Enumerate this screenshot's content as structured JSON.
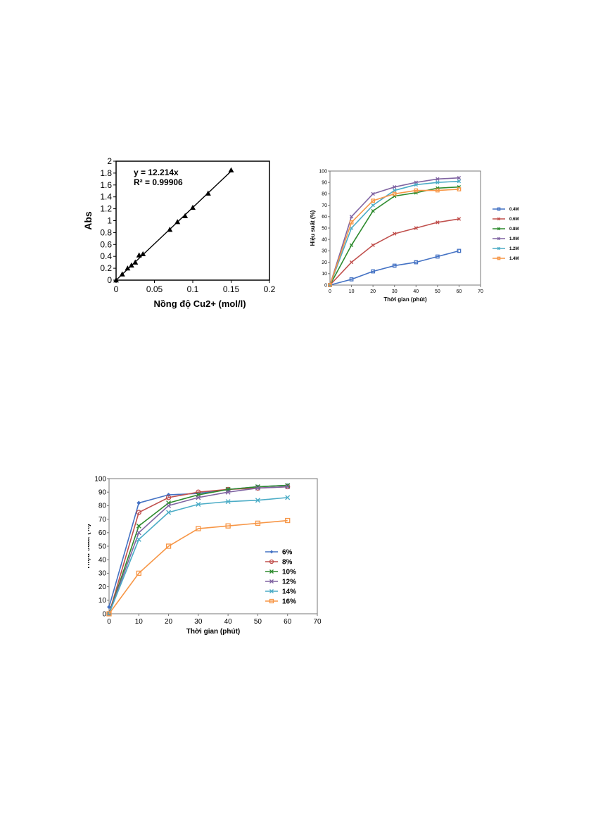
{
  "chart_data": [
    {
      "type": "scatter",
      "xlabel": "Nồng độ Cu2+  (mol/l)",
      "ylabel": "Abs",
      "xlim": [
        0,
        0.2
      ],
      "ylim": [
        0,
        2
      ],
      "x_ticks": [
        "0",
        "0.05",
        "0.1",
        "0.15",
        "0.2"
      ],
      "y_ticks": [
        "0",
        "0.2",
        "0.4",
        "0.6",
        "0.8",
        "1",
        "1.2",
        "1.4",
        "1.6",
        "1.8",
        "2"
      ],
      "x_tick_values": [
        0,
        0.05,
        0.1,
        0.15,
        0.2
      ],
      "y_tick_values": [
        0,
        0.2,
        0.4,
        0.6,
        0.8,
        1,
        1.2,
        1.4,
        1.6,
        1.8,
        2
      ],
      "equation": "y = 12.214x",
      "r_squared": "R² = 0.99906",
      "trendline": {
        "slope": 12.214,
        "x_range": [
          0,
          0.15
        ]
      },
      "points": [
        {
          "x": 0,
          "y": 0
        },
        {
          "x": 0.008,
          "y": 0.1
        },
        {
          "x": 0.015,
          "y": 0.2
        },
        {
          "x": 0.02,
          "y": 0.25
        },
        {
          "x": 0.025,
          "y": 0.3
        },
        {
          "x": 0.03,
          "y": 0.42
        },
        {
          "x": 0.035,
          "y": 0.44
        },
        {
          "x": 0.07,
          "y": 0.85
        },
        {
          "x": 0.08,
          "y": 0.98
        },
        {
          "x": 0.09,
          "y": 1.08
        },
        {
          "x": 0.1,
          "y": 1.22
        },
        {
          "x": 0.12,
          "y": 1.46
        },
        {
          "x": 0.15,
          "y": 1.85
        }
      ]
    },
    {
      "type": "line",
      "xlabel": "Thời gian (phút)",
      "ylabel": "Hiệu suất (%)",
      "x": [
        0,
        10,
        20,
        30,
        40,
        50,
        60
      ],
      "xlim": [
        0,
        70
      ],
      "ylim": [
        0,
        100
      ],
      "x_ticks": [
        "0",
        "10",
        "20",
        "30",
        "40",
        "50",
        "60",
        "70"
      ],
      "y_ticks": [
        "0",
        "10",
        "20",
        "30",
        "40",
        "50",
        "60",
        "70",
        "80",
        "90",
        "100"
      ],
      "x_tick_values": [
        0,
        10,
        20,
        30,
        40,
        50,
        60,
        70
      ],
      "y_tick_values": [
        0,
        10,
        20,
        30,
        40,
        50,
        60,
        70,
        80,
        90,
        100
      ],
      "legend_position": "right",
      "series": [
        {
          "name": "0.4M",
          "color": "#4472C4",
          "marker": "square",
          "values": [
            0,
            5,
            12,
            17,
            20,
            25,
            30
          ]
        },
        {
          "name": "0.6M",
          "color": "#C0504D",
          "marker": "x",
          "values": [
            0,
            20,
            35,
            45,
            50,
            55,
            58
          ]
        },
        {
          "name": "0.8M",
          "color": "#2E8B2E",
          "marker": "x",
          "values": [
            0,
            35,
            65,
            78,
            81,
            85,
            86
          ]
        },
        {
          "name": "1.0M",
          "color": "#8064A2",
          "marker": "x",
          "values": [
            0,
            60,
            80,
            86,
            90,
            93,
            94
          ]
        },
        {
          "name": "1.2M",
          "color": "#4BACC6",
          "marker": "x",
          "values": [
            0,
            50,
            70,
            83,
            88,
            90,
            91
          ]
        },
        {
          "name": "1.4M",
          "color": "#F79646",
          "marker": "square",
          "values": [
            0,
            55,
            74,
            80,
            83,
            83,
            84
          ]
        }
      ]
    },
    {
      "type": "line",
      "xlabel": "Thời gian (phút)",
      "ylabel": "Hiệu suất (%)",
      "x": [
        0,
        10,
        20,
        30,
        40,
        50,
        60
      ],
      "xlim": [
        0,
        70
      ],
      "ylim": [
        0,
        100
      ],
      "x_ticks": [
        "0",
        "10",
        "20",
        "30",
        "40",
        "50",
        "60",
        "70"
      ],
      "y_ticks": [
        "0",
        "10",
        "20",
        "30",
        "40",
        "50",
        "60",
        "70",
        "80",
        "90",
        "100"
      ],
      "x_tick_values": [
        0,
        10,
        20,
        30,
        40,
        50,
        60,
        70
      ],
      "y_tick_values": [
        0,
        10,
        20,
        30,
        40,
        50,
        60,
        70,
        80,
        90,
        100
      ],
      "legend_position": "right",
      "series": [
        {
          "name": "6%",
          "color": "#4472C4",
          "marker": "diamond",
          "values": [
            5,
            82,
            88,
            89,
            92,
            94,
            95
          ]
        },
        {
          "name": "8%",
          "color": "#C0504D",
          "marker": "circle",
          "values": [
            0,
            75,
            86,
            90,
            92,
            93,
            94
          ]
        },
        {
          "name": "10%",
          "color": "#2E8B2E",
          "marker": "x",
          "values": [
            0,
            65,
            82,
            88,
            92,
            94,
            95
          ]
        },
        {
          "name": "12%",
          "color": "#8064A2",
          "marker": "x",
          "values": [
            0,
            60,
            80,
            86,
            90,
            93,
            94
          ]
        },
        {
          "name": "14%",
          "color": "#4BACC6",
          "marker": "x",
          "values": [
            0,
            55,
            75,
            81,
            83,
            84,
            86
          ]
        },
        {
          "name": "16%",
          "color": "#F79646",
          "marker": "square",
          "values": [
            0,
            30,
            50,
            63,
            65,
            67,
            69
          ]
        }
      ]
    }
  ]
}
